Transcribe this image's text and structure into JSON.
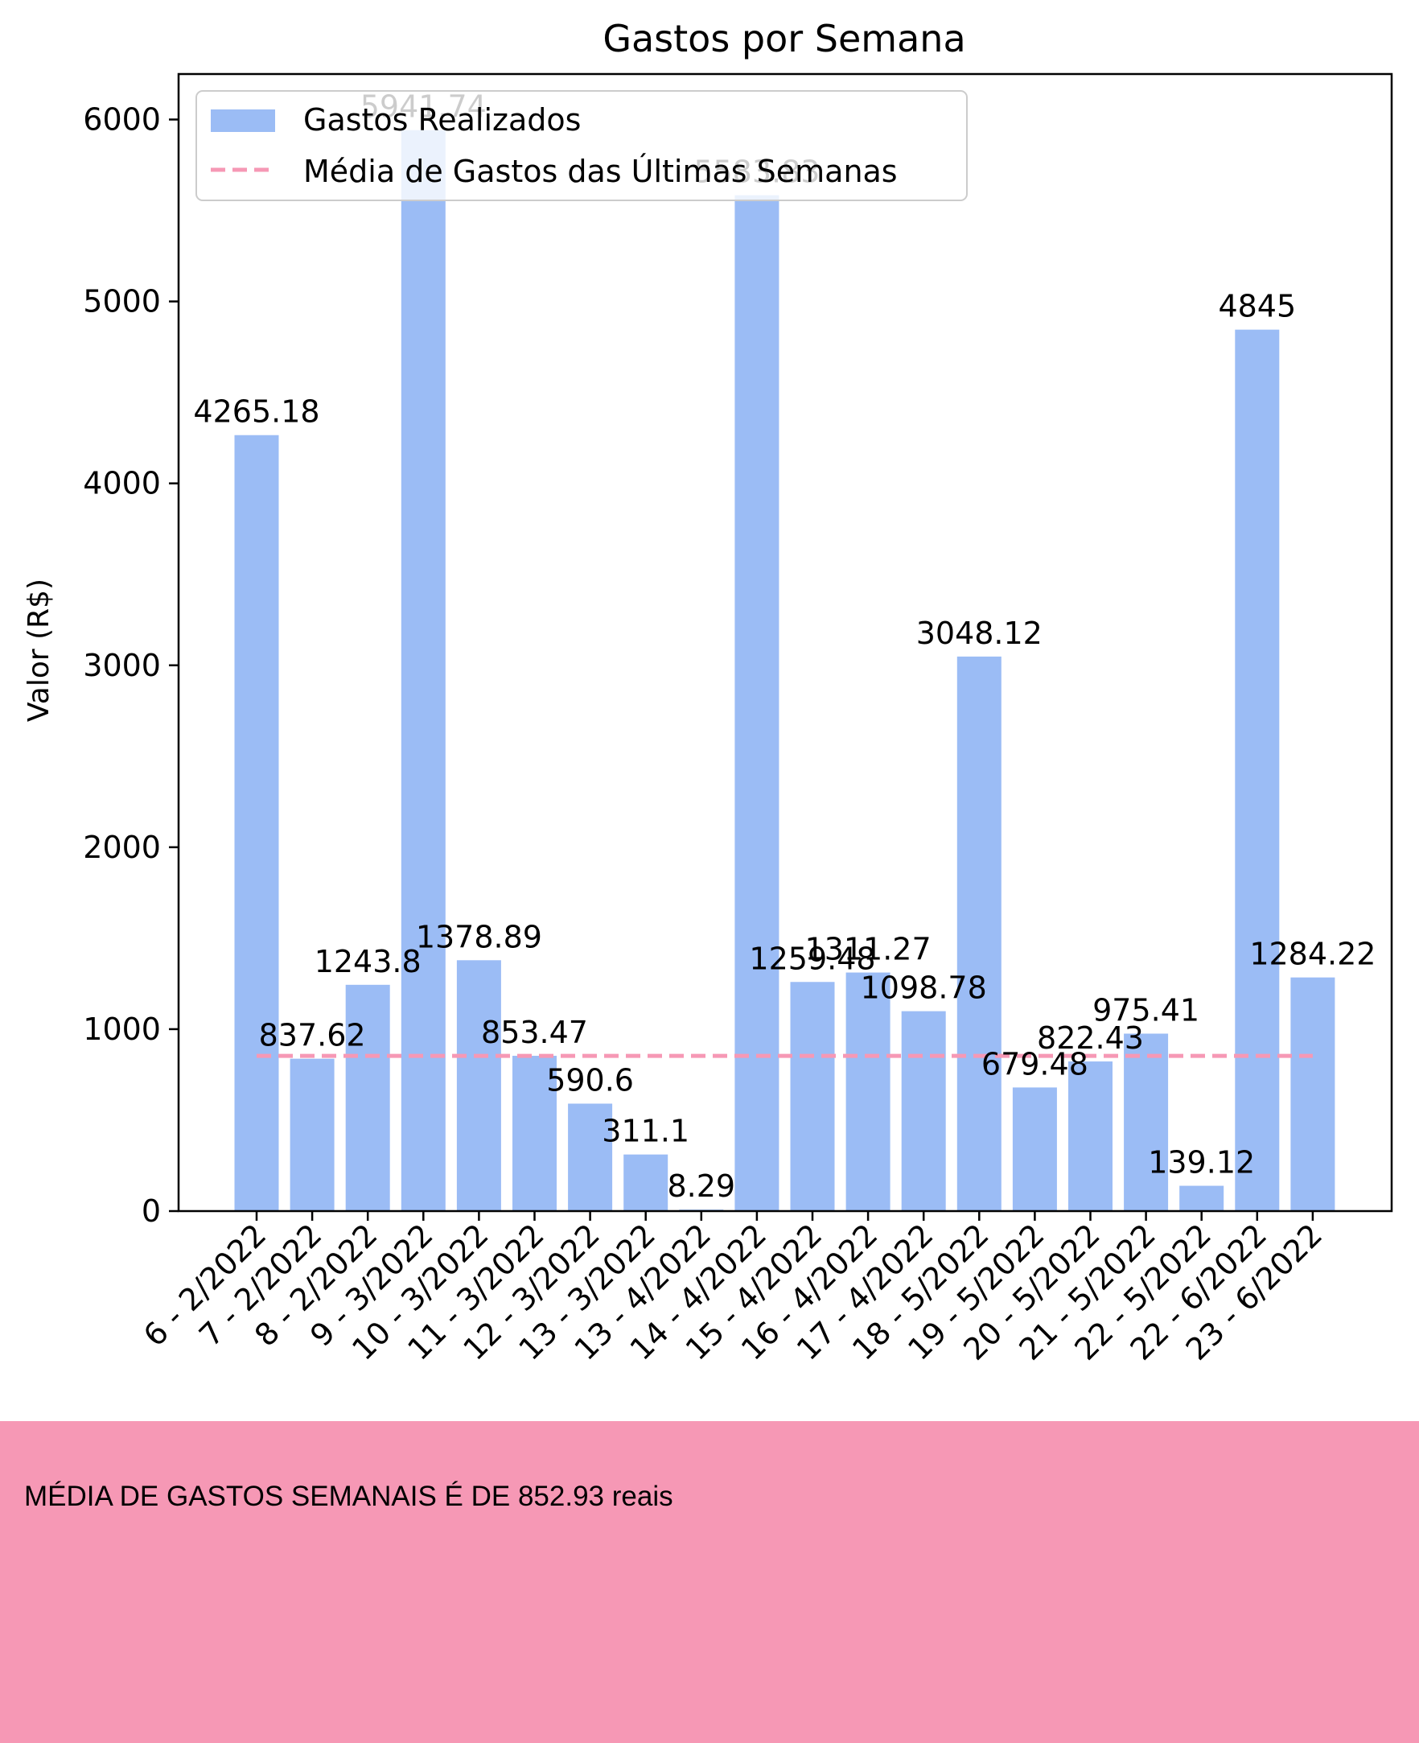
{
  "chart_data": {
    "type": "bar",
    "title": "Gastos por Semana",
    "xlabel": "",
    "ylabel": "Valor (R$)",
    "ylim": [
      0,
      6250
    ],
    "yticks": [
      0,
      1000,
      2000,
      3000,
      4000,
      5000,
      6000
    ],
    "categories": [
      "6 - 2/2022",
      "7 - 2/2022",
      "8 - 2/2022",
      "9 - 3/2022",
      "10 - 3/2022",
      "11 - 3/2022",
      "12 - 3/2022",
      "13 - 3/2022",
      "13 - 4/2022",
      "14 - 4/2022",
      "15 - 4/2022",
      "16 - 4/2022",
      "17 - 4/2022",
      "18 - 5/2022",
      "19 - 5/2022",
      "20 - 5/2022",
      "21 - 5/2022",
      "22 - 5/2022",
      "22 - 6/2022",
      "23 - 6/2022"
    ],
    "series": [
      {
        "name": "Gastos Realizados",
        "color": "#9bbcf5",
        "values": [
          4265.18,
          837.62,
          1243.8,
          5941.74,
          1378.89,
          853.47,
          590.6,
          311.1,
          8.29,
          5583.83,
          1259.48,
          1311.27,
          1098.78,
          3048.12,
          679.48,
          822.43,
          975.41,
          139.12,
          4845,
          1284.22
        ],
        "labels": [
          "4265.18",
          "837.62",
          "1243.8",
          "5941.74",
          "1378.89",
          "853.47",
          "590.6",
          "311.1",
          "8.29",
          "5583.83",
          "1259.48",
          "1311.27",
          "1098.78",
          "3048.12",
          "679.48",
          "822.43",
          "975.41",
          "139.12",
          "4845",
          "1284.22"
        ]
      },
      {
        "name": "Média de Gastos das Últimas Semanas",
        "type": "line",
        "style": "dashed",
        "color": "#f698b5",
        "value": 852.93
      }
    ],
    "legend_position": "top-left",
    "grid": false
  },
  "footer": {
    "text": "MÉDIA DE GASTOS SEMANAIS É DE 852.93 reais",
    "background": "#f698b5"
  }
}
